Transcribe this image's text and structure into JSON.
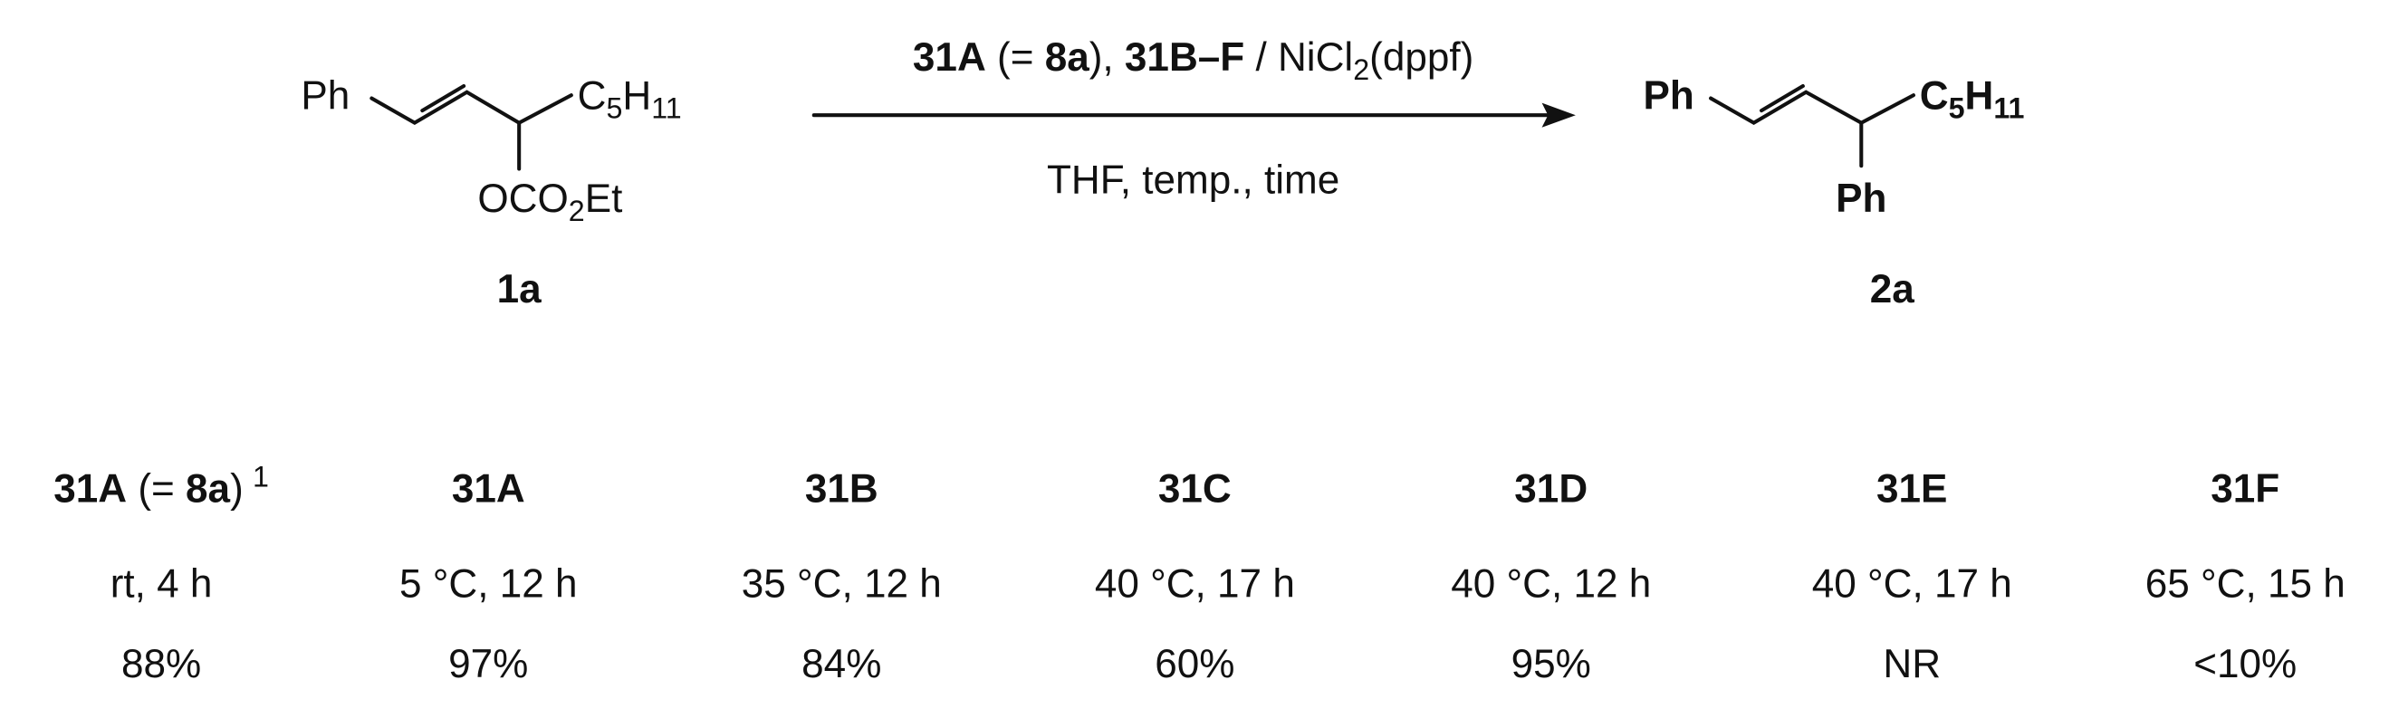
{
  "reactant": {
    "ph": "Ph",
    "chain": [
      "C",
      "5",
      "H",
      "11"
    ],
    "ester": [
      "OCO",
      "2",
      "Et"
    ],
    "label": "1a"
  },
  "reagents": [
    "31A",
    " (= ",
    "8a",
    "), ",
    "31B–F",
    " / NiCl",
    "2",
    "(dppf)"
  ],
  "conditions": "THF, temp., time",
  "product": {
    "ph": "Ph",
    "chain": [
      "C",
      "5",
      "H",
      "11"
    ],
    "ph2": "Ph",
    "label": "2a"
  },
  "table": {
    "columns": [
      {
        "catalyst": [
          "31A",
          " (= ",
          "8a",
          ")"
        ],
        "note": "1",
        "conditions": "rt, 4 h",
        "yield": "88%"
      },
      {
        "catalyst": [
          "31A"
        ],
        "conditions": "5 °C, 12 h",
        "yield": "97%"
      },
      {
        "catalyst": [
          "31B"
        ],
        "conditions": "35 °C, 12 h",
        "yield": "84%"
      },
      {
        "catalyst": [
          "31C"
        ],
        "conditions": "40 °C, 17 h",
        "yield": "60%"
      },
      {
        "catalyst": [
          "31D"
        ],
        "conditions": "40 °C, 12 h",
        "yield": "95%"
      },
      {
        "catalyst": [
          "31E"
        ],
        "conditions": "40 °C, 17 h",
        "yield": "NR"
      },
      {
        "catalyst": [
          "31F"
        ],
        "conditions": "65 °C, 15 h",
        "yield": "<10%"
      }
    ]
  }
}
